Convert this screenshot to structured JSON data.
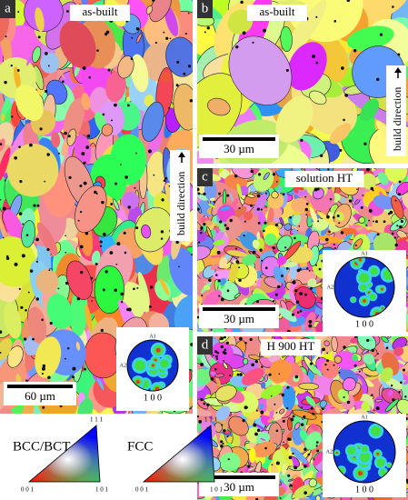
{
  "panels": [
    {
      "label": "a",
      "title": "as-built",
      "scale_bar": "60 µm",
      "direction": "build direction",
      "pole_figure": {
        "top": "A1",
        "left": "A2",
        "bottom": "1 0 0"
      }
    },
    {
      "label": "b",
      "title": "as-built",
      "scale_bar": "30 µm",
      "direction": "build direction"
    },
    {
      "label": "c",
      "title": "solution HT",
      "scale_bar": "30 µm",
      "pole_figure": {
        "top": "A1",
        "left": "A2",
        "bottom": "1 0 0"
      }
    },
    {
      "label": "d",
      "title": "H 900 HT",
      "scale_bar": "30 µm",
      "pole_figure": {
        "top": "A1",
        "left": "A2",
        "bottom": "1 0 0"
      }
    }
  ],
  "legend": [
    {
      "title": "BCC/BCT",
      "corners": [
        "0 0 1",
        "1 0 1",
        "1 1 1"
      ]
    },
    {
      "title": "FCC",
      "corners": [
        "0 0 1",
        "1 0 1",
        "1 1 1"
      ]
    }
  ]
}
